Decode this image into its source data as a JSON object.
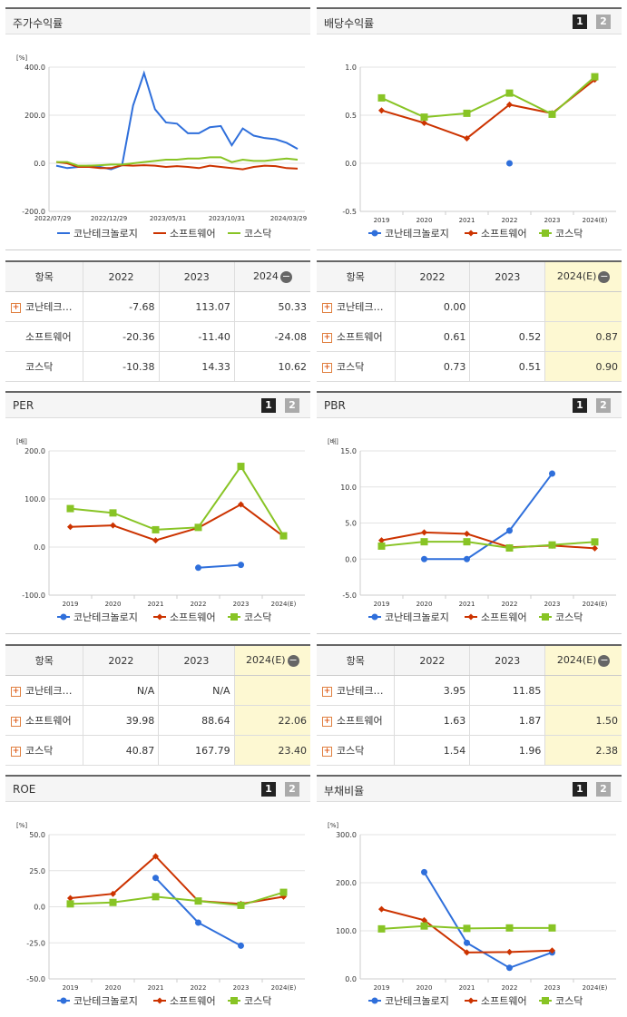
{
  "colors": {
    "company": "#2f6fdb",
    "software": "#cc3300",
    "kosdaq": "#88c425"
  },
  "legend": [
    "코난테크놀로지",
    "소프트웨어",
    "코스닥"
  ],
  "panels": {
    "price": {
      "title": "주가수익률",
      "unit": "[%]"
    },
    "div": {
      "title": "배당수익률",
      "btn1": "1",
      "btn2": "2"
    },
    "per": {
      "title": "PER",
      "unit": "[배]",
      "btn1": "1",
      "btn2": "2"
    },
    "pbr": {
      "title": "PBR",
      "unit": "[배]",
      "btn1": "1",
      "btn2": "2"
    },
    "roe": {
      "title": "ROE",
      "unit": "[%]",
      "btn1": "1",
      "btn2": "2"
    },
    "debt": {
      "title": "부채비율",
      "unit": "[%]",
      "btn1": "1",
      "btn2": "2"
    }
  },
  "tables": {
    "price": {
      "head": [
        "항목",
        "2022",
        "2023",
        "2024"
      ],
      "rows": [
        {
          "plus": true,
          "name": "코난테크…",
          "v": [
            "-7.68",
            "113.07",
            "50.33"
          ]
        },
        {
          "plus": false,
          "name": "소프트웨어",
          "v": [
            "-20.36",
            "-11.40",
            "-24.08"
          ]
        },
        {
          "plus": false,
          "name": "코스닥",
          "v": [
            "-10.38",
            "14.33",
            "10.62"
          ]
        }
      ]
    },
    "div": {
      "head": [
        "항목",
        "2022",
        "2023",
        "2024(E)"
      ],
      "rows": [
        {
          "plus": true,
          "name": "코난테크…",
          "v": [
            "0.00",
            "",
            ""
          ]
        },
        {
          "plus": true,
          "name": "소프트웨어",
          "v": [
            "0.61",
            "0.52",
            "0.87"
          ]
        },
        {
          "plus": true,
          "name": "코스닥",
          "v": [
            "0.73",
            "0.51",
            "0.90"
          ]
        }
      ]
    },
    "per": {
      "head": [
        "항목",
        "2022",
        "2023",
        "2024(E)"
      ],
      "rows": [
        {
          "plus": true,
          "name": "코난테크…",
          "v": [
            "N/A",
            "N/A",
            ""
          ]
        },
        {
          "plus": true,
          "name": "소프트웨어",
          "v": [
            "39.98",
            "88.64",
            "22.06"
          ]
        },
        {
          "plus": true,
          "name": "코스닥",
          "v": [
            "40.87",
            "167.79",
            "23.40"
          ]
        }
      ]
    },
    "pbr": {
      "head": [
        "항목",
        "2022",
        "2023",
        "2024(E)"
      ],
      "rows": [
        {
          "plus": true,
          "name": "코난테크…",
          "v": [
            "3.95",
            "11.85",
            ""
          ]
        },
        {
          "plus": true,
          "name": "소프트웨어",
          "v": [
            "1.63",
            "1.87",
            "1.50"
          ]
        },
        {
          "plus": true,
          "name": "코스닥",
          "v": [
            "1.54",
            "1.96",
            "2.38"
          ]
        }
      ]
    }
  },
  "chart_data": [
    {
      "id": "price",
      "type": "line",
      "title": "주가수익률",
      "ylabel": "[%]",
      "ylim": [
        -200,
        400
      ],
      "yticks": [
        "400.0",
        "200.0",
        "0.0",
        "-200.0"
      ],
      "xticks": [
        "2022/07/29",
        "2022/12/29",
        "2023/05/31",
        "2023/10/31",
        "2024/03/29"
      ],
      "x": [
        "2022/07",
        "2022/08",
        "2022/09",
        "2022/10",
        "2022/11",
        "2022/12",
        "2023/01",
        "2023/02",
        "2023/03",
        "2023/04",
        "2023/05",
        "2023/06",
        "2023/07",
        "2023/08",
        "2023/09",
        "2023/10",
        "2023/11",
        "2023/12",
        "2024/01",
        "2024/02",
        "2024/03",
        "2024/04",
        "2024/05"
      ],
      "series": [
        {
          "name": "코난테크놀로지",
          "values": [
            -10,
            -20,
            -15,
            -10,
            -15,
            -25,
            -8,
            240,
            375,
            225,
            170,
            165,
            125,
            125,
            150,
            155,
            75,
            145,
            115,
            105,
            100,
            85,
            60
          ]
        },
        {
          "name": "소프트웨어",
          "values": [
            5,
            0,
            -15,
            -15,
            -20,
            -20,
            -8,
            -10,
            -8,
            -10,
            -15,
            -12,
            -15,
            -20,
            -10,
            -15,
            -20,
            -25,
            -15,
            -10,
            -12,
            -20,
            -22
          ]
        },
        {
          "name": "코스닥",
          "values": [
            5,
            5,
            -10,
            -10,
            -8,
            -5,
            -5,
            0,
            5,
            10,
            15,
            15,
            20,
            20,
            25,
            25,
            5,
            15,
            10,
            10,
            15,
            20,
            15
          ]
        }
      ]
    },
    {
      "id": "div",
      "type": "line",
      "title": "배당수익률",
      "ylim": [
        -0.5,
        1.0
      ],
      "yticks": [
        "1.0",
        "0.5",
        "0.0",
        "-0.5"
      ],
      "categories": [
        "2019",
        "2020",
        "2021",
        "2022",
        "2023",
        "2024(E)"
      ],
      "series": [
        {
          "name": "코난테크놀로지",
          "values": [
            null,
            null,
            null,
            0.0,
            null,
            null
          ]
        },
        {
          "name": "소프트웨어",
          "values": [
            0.55,
            0.42,
            0.26,
            0.61,
            0.52,
            0.87
          ]
        },
        {
          "name": "코스닥",
          "values": [
            0.68,
            0.48,
            0.52,
            0.73,
            0.51,
            0.9
          ]
        }
      ]
    },
    {
      "id": "per",
      "type": "line",
      "title": "PER",
      "ylabel": "[배]",
      "ylim": [
        -100,
        200
      ],
      "yticks": [
        "200.0",
        "100.0",
        "0.0",
        "-100.0"
      ],
      "categories": [
        "2019",
        "2020",
        "2021",
        "2022",
        "2023",
        "2024(E)"
      ],
      "series": [
        {
          "name": "코난테크놀로지",
          "values": [
            null,
            null,
            null,
            -43,
            -37,
            null
          ]
        },
        {
          "name": "소프트웨어",
          "values": [
            42,
            45,
            14,
            39.98,
            88.64,
            22.06
          ]
        },
        {
          "name": "코스닥",
          "values": [
            80,
            71,
            36,
            40.87,
            167.79,
            23.4
          ]
        }
      ]
    },
    {
      "id": "pbr",
      "type": "line",
      "title": "PBR",
      "ylabel": "[배]",
      "ylim": [
        -5,
        15
      ],
      "yticks": [
        "15.0",
        "10.0",
        "5.0",
        "0.0",
        "-5.0"
      ],
      "categories": [
        "2019",
        "2020",
        "2021",
        "2022",
        "2023",
        "2024(E)"
      ],
      "series": [
        {
          "name": "코난테크놀로지",
          "values": [
            null,
            0.0,
            0.0,
            3.95,
            11.85,
            null
          ]
        },
        {
          "name": "소프트웨어",
          "values": [
            2.6,
            3.7,
            3.5,
            1.63,
            1.87,
            1.5
          ]
        },
        {
          "name": "코스닥",
          "values": [
            1.8,
            2.4,
            2.4,
            1.54,
            1.96,
            2.38
          ]
        }
      ]
    },
    {
      "id": "roe",
      "type": "line",
      "title": "ROE",
      "ylabel": "[%]",
      "ylim": [
        -50,
        50
      ],
      "yticks": [
        "50.0",
        "25.0",
        "0.0",
        "-25.0",
        "-50.0"
      ],
      "categories": [
        "2019",
        "2020",
        "2021",
        "2022",
        "2023",
        "2024(E)"
      ],
      "series": [
        {
          "name": "코난테크놀로지",
          "values": [
            null,
            null,
            20,
            -11,
            -27,
            null
          ]
        },
        {
          "name": "소프트웨어",
          "values": [
            6,
            9,
            35,
            4,
            2,
            7
          ]
        },
        {
          "name": "코스닥",
          "values": [
            2,
            3,
            7,
            4,
            1,
            10
          ]
        }
      ]
    },
    {
      "id": "debt",
      "type": "line",
      "title": "부채비율",
      "ylabel": "[%]",
      "ylim": [
        0,
        300
      ],
      "yticks": [
        "300.0",
        "200.0",
        "100.0",
        "0.0"
      ],
      "categories": [
        "2019",
        "2020",
        "2021",
        "2022",
        "2023",
        "2024(E)"
      ],
      "series": [
        {
          "name": "코난테크놀로지",
          "values": [
            null,
            222,
            75,
            23,
            55,
            null
          ]
        },
        {
          "name": "소프트웨어",
          "values": [
            145,
            122,
            55,
            56,
            59,
            null
          ]
        },
        {
          "name": "코스닥",
          "values": [
            104,
            110,
            105,
            106,
            106,
            null
          ]
        }
      ]
    }
  ]
}
